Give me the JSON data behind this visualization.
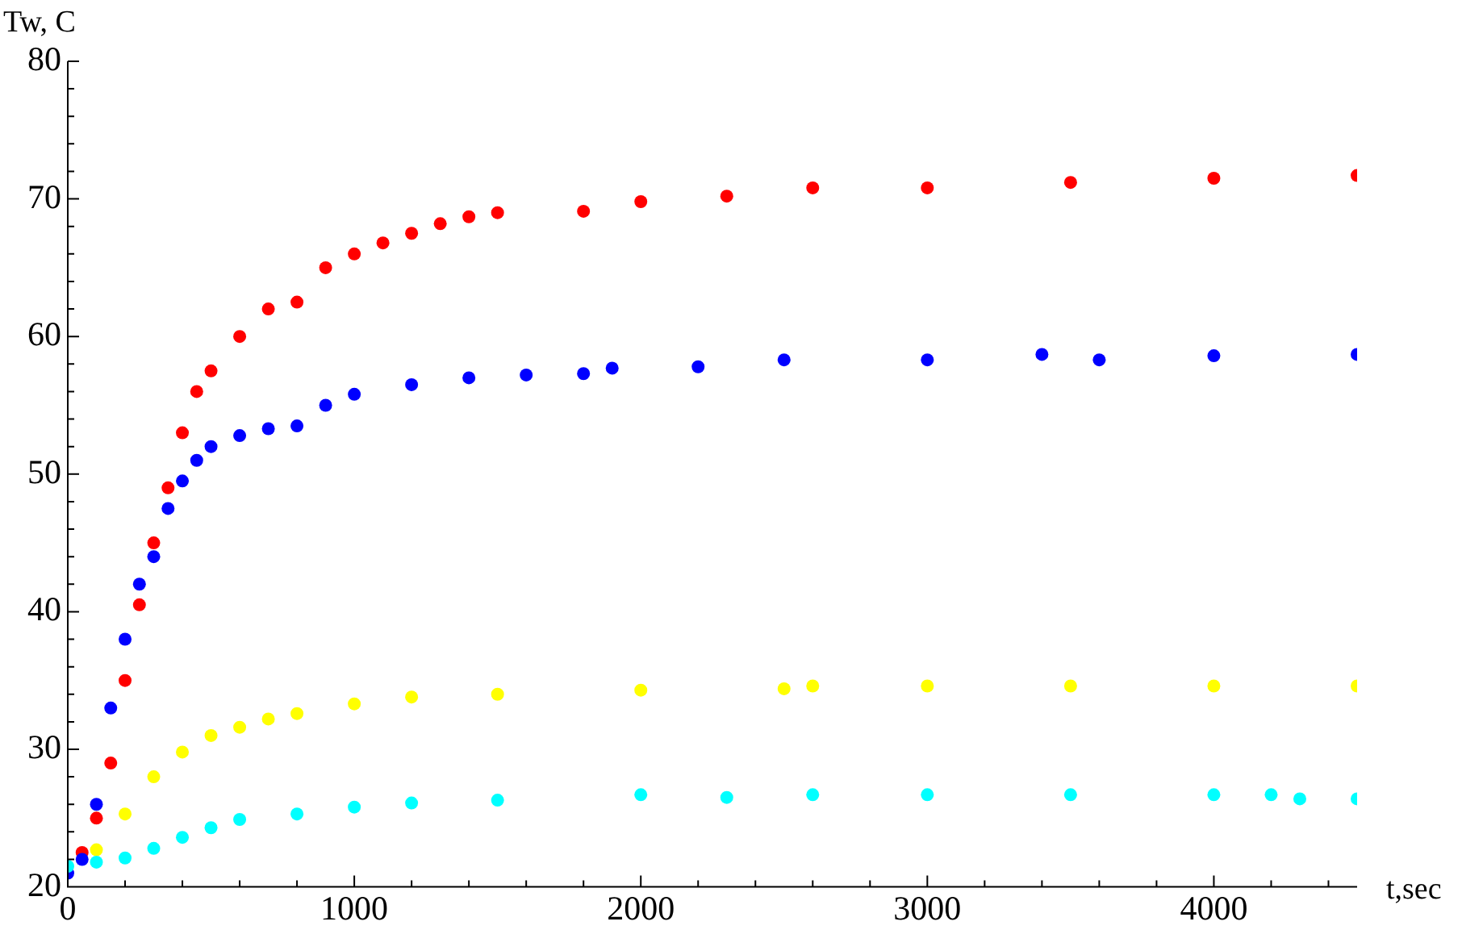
{
  "chart_data": {
    "type": "scatter",
    "xlabel": "t,sec",
    "ylabel": "Tw, C",
    "marker": "circle",
    "grid": false,
    "legend": false,
    "xlim": [
      0,
      4500
    ],
    "ylim": [
      20,
      80
    ],
    "xticks": [
      0,
      {
        "value": 200,
        "label": null
      },
      {
        "value": 400,
        "label": null
      },
      {
        "value": 600,
        "label": null
      },
      {
        "value": 800,
        "label": null
      },
      1000,
      {
        "value": 1200,
        "label": null
      },
      {
        "value": 1400,
        "label": null
      },
      {
        "value": 1600,
        "label": null
      },
      {
        "value": 1800,
        "label": null
      },
      2000,
      {
        "value": 2200,
        "label": null
      },
      {
        "value": 2400,
        "label": null
      },
      {
        "value": 2600,
        "label": null
      },
      {
        "value": 2800,
        "label": null
      },
      3000,
      {
        "value": 3200,
        "label": null
      },
      {
        "value": 3400,
        "label": null
      },
      {
        "value": 3600,
        "label": null
      },
      {
        "value": 3800,
        "label": null
      },
      4000,
      {
        "value": 4200,
        "label": null
      },
      {
        "value": 4400,
        "label": null
      }
    ],
    "yticks": [
      20,
      {
        "value": 22,
        "label": null
      },
      {
        "value": 24,
        "label": null
      },
      {
        "value": 26,
        "label": null
      },
      {
        "value": 28,
        "label": null
      },
      30,
      {
        "value": 32,
        "label": null
      },
      {
        "value": 34,
        "label": null
      },
      {
        "value": 36,
        "label": null
      },
      {
        "value": 38,
        "label": null
      },
      40,
      {
        "value": 42,
        "label": null
      },
      {
        "value": 44,
        "label": null
      },
      {
        "value": 46,
        "label": null
      },
      {
        "value": 48,
        "label": null
      },
      50,
      {
        "value": 52,
        "label": null
      },
      {
        "value": 54,
        "label": null
      },
      {
        "value": 56,
        "label": null
      },
      {
        "value": 58,
        "label": null
      },
      60,
      {
        "value": 62,
        "label": null
      },
      {
        "value": 64,
        "label": null
      },
      {
        "value": 66,
        "label": null
      },
      {
        "value": 68,
        "label": null
      },
      70,
      {
        "value": 72,
        "label": null
      },
      {
        "value": 74,
        "label": null
      },
      {
        "value": 76,
        "label": null
      },
      {
        "value": 78,
        "label": null
      },
      80
    ],
    "series": [
      {
        "color": "#00ffff",
        "x": [
          0,
          100,
          200,
          300,
          400,
          500,
          600,
          800,
          1000,
          1200,
          1500,
          2000,
          2300,
          2600,
          3000,
          3500,
          4000,
          4200,
          4300,
          4500
        ],
        "values": [
          21.5,
          21.8,
          22.1,
          22.8,
          23.6,
          24.3,
          24.9,
          25.3,
          25.8,
          26.1,
          26.3,
          26.7,
          26.5,
          26.7,
          26.7,
          26.7,
          26.7,
          26.7,
          26.4,
          26.4
        ]
      },
      {
        "color": "#ffff00",
        "x": [
          100,
          200,
          300,
          400,
          500,
          600,
          700,
          800,
          1000,
          1200,
          1500,
          2000,
          2500,
          2600,
          3000,
          3500,
          4000,
          4500
        ],
        "values": [
          22.7,
          25.3,
          28,
          29.8,
          31,
          31.6,
          32.2,
          32.6,
          33.3,
          33.8,
          34,
          34.3,
          34.4,
          34.6,
          34.6,
          34.6,
          34.6,
          34.6
        ]
      },
      {
        "color": "#0000ff",
        "x": [
          0,
          50,
          100,
          150,
          200,
          250,
          300,
          350,
          400,
          450,
          500,
          600,
          700,
          800,
          900,
          1000,
          1200,
          1400,
          1600,
          1800,
          1900,
          2200,
          2500,
          3000,
          3400,
          3600,
          4000,
          4500
        ],
        "values": [
          21,
          22,
          26,
          33,
          38,
          42,
          44,
          47.5,
          49.5,
          51,
          52,
          52.8,
          53.3,
          53.5,
          55,
          55.8,
          56.5,
          57,
          57.2,
          57.3,
          57.7,
          57.8,
          58.3,
          58.3,
          58.7,
          58.3,
          58.6,
          58.7
        ]
      },
      {
        "color": "#ff0000",
        "x": [
          50,
          100,
          150,
          200,
          250,
          300,
          350,
          400,
          450,
          500,
          600,
          700,
          800,
          900,
          1000,
          1100,
          1200,
          1300,
          1400,
          1500,
          1800,
          2000,
          2300,
          2600,
          3000,
          3500,
          4000,
          4500
        ],
        "values": [
          22.5,
          25,
          29,
          35,
          40.5,
          45,
          49,
          53,
          56,
          57.5,
          60,
          62,
          62.5,
          65,
          66,
          66.8,
          67.5,
          68.2,
          68.7,
          69,
          69.1,
          69.8,
          70.2,
          70.8,
          70.8,
          71.2,
          71.5,
          71.7
        ]
      }
    ]
  }
}
